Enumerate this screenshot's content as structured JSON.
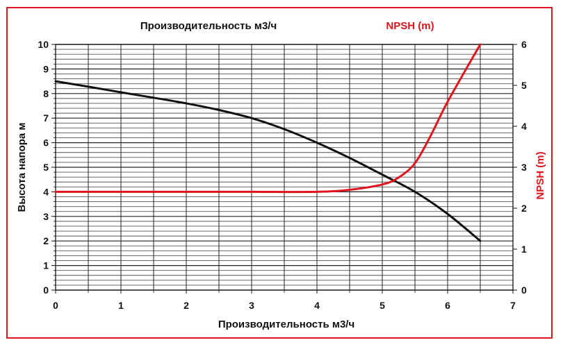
{
  "chart_data": {
    "type": "line",
    "title_left": "Производительность м3/ч",
    "title_right": "NPSH (m)",
    "xlabel": "Производительность м3/ч",
    "ylabel": "Высота напора м",
    "y2label": "NPSH (m)",
    "xlim": [
      0,
      7
    ],
    "ylim": [
      0,
      10
    ],
    "y2lim": [
      0,
      6
    ],
    "x_ticks": [
      "0",
      "1",
      "2",
      "3",
      "4",
      "5",
      "6",
      "7"
    ],
    "y_ticks": [
      "0",
      "1",
      "2",
      "3",
      "4",
      "5",
      "6",
      "7",
      "8",
      "9",
      "10"
    ],
    "y2_ticks": [
      "0",
      "1",
      "2",
      "3",
      "4",
      "5",
      "6"
    ],
    "grid": true,
    "series": [
      {
        "name": "Высота напора м",
        "axis": "left",
        "color": "#111111",
        "x": [
          0,
          0.5,
          1,
          1.5,
          2,
          2.5,
          3,
          3.5,
          4,
          4.5,
          5,
          5.5,
          6,
          6.5
        ],
        "values": [
          8.5,
          8.28,
          8.05,
          7.83,
          7.6,
          7.33,
          7.0,
          6.55,
          6.0,
          5.38,
          4.7,
          4.0,
          3.1,
          2.0
        ]
      },
      {
        "name": "NPSH (m)",
        "axis": "right",
        "color": "#e0141e",
        "x": [
          0,
          1,
          2,
          3,
          4,
          4.5,
          5,
          5.25,
          5.5,
          5.75,
          6,
          6.5
        ],
        "values": [
          2.4,
          2.4,
          2.4,
          2.4,
          2.4,
          2.45,
          2.58,
          2.75,
          3.1,
          3.8,
          4.6,
          6.0
        ]
      }
    ]
  }
}
